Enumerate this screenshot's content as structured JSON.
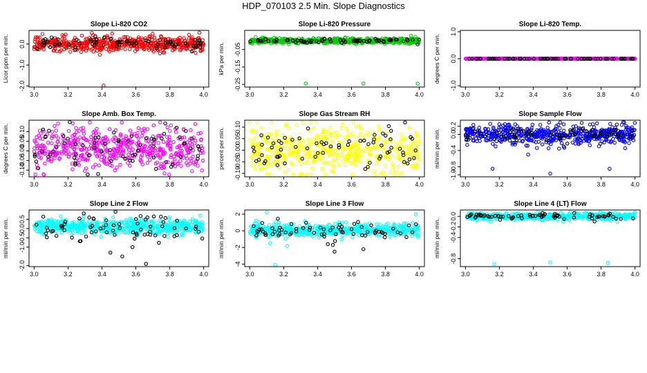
{
  "page": {
    "title": "HDP_070103  2.5 Min. Slope Diagnostics"
  },
  "chart_data": [
    {
      "type": "scatter",
      "title": "Slope Li-820 CO2",
      "xlabel": "",
      "ylabel": "Licor ppm per min.",
      "xlim": [
        2.97,
        4.03
      ],
      "ylim": [
        -2.05,
        0.65
      ],
      "xticks": [
        3.0,
        3.2,
        3.4,
        3.6,
        3.8,
        4.0
      ],
      "xtick_labels": [
        "3.0",
        "3.2",
        "3.4",
        "3.6",
        "3.8",
        "4.0"
      ],
      "yticks": [
        -2,
        -1,
        0
      ],
      "ytick_labels": [
        "-2.0",
        "-1.0",
        "0.0"
      ],
      "series": [
        {
          "color": "#ff0000",
          "center": 0.0,
          "spread": 0.17,
          "outliers": [
            [
              3.41,
              -1.98
            ],
            [
              3.46,
              0.5
            ]
          ]
        },
        {
          "color": "#000000",
          "center": 0.05,
          "spread": 0.15,
          "outliers": [
            [
              3.93,
              -0.35
            ],
            [
              3.98,
              -0.15
            ]
          ]
        }
      ]
    },
    {
      "type": "scatter",
      "title": "Slope Li-820 Pressure",
      "xlabel": "",
      "ylabel": "kPa per min.",
      "xlim": [
        2.97,
        4.03
      ],
      "ylim": [
        -0.265,
        0.06
      ],
      "xticks": [
        3.0,
        3.2,
        3.4,
        3.6,
        3.8,
        4.0
      ],
      "xtick_labels": [
        "3.0",
        "3.2",
        "3.4",
        "3.6",
        "3.8",
        "4.0"
      ],
      "yticks": [
        -0.25,
        -0.15,
        -0.05
      ],
      "ytick_labels": [
        "-0.25",
        "-0.15",
        "-0.05"
      ],
      "series": [
        {
          "color": "#00cc00",
          "center": 0.0,
          "spread": 0.008,
          "outliers": [
            [
              3.33,
              -0.245
            ],
            [
              3.67,
              -0.245
            ],
            [
              3.99,
              -0.245
            ],
            [
              3.95,
              0.03
            ]
          ]
        },
        {
          "color": "#000000",
          "center": 0.0,
          "spread": 0.006,
          "outliers": [
            [
              3.99,
              -0.02
            ]
          ]
        }
      ]
    },
    {
      "type": "scatter",
      "title": "Slope Li-820 Temp.",
      "xlabel": "",
      "ylabel": "degrees C per min.",
      "xlim": [
        2.97,
        4.03
      ],
      "ylim": [
        -1.05,
        1.05
      ],
      "xticks": [
        3.0,
        3.2,
        3.4,
        3.6,
        3.8,
        4.0
      ],
      "xtick_labels": [
        "3.0",
        "3.2",
        "3.4",
        "3.6",
        "3.8",
        "4.0"
      ],
      "yticks": [
        -1,
        0,
        1
      ],
      "ytick_labels": [
        "-1.0",
        "0.0",
        "1.0"
      ],
      "series": [
        {
          "color": "#ff00ff",
          "center": 0.0,
          "spread": 0.0,
          "outliers": []
        },
        {
          "color": "#000000",
          "center": 0.0,
          "spread": 0.0,
          "outliers": []
        }
      ]
    },
    {
      "type": "scatter",
      "title": "Slope Amb. Box Temp.",
      "xlabel": "",
      "ylabel": "degrees C per min.",
      "xlim": [
        2.97,
        4.03
      ],
      "ylim": [
        -0.135,
        0.16
      ],
      "xticks": [
        3.0,
        3.2,
        3.4,
        3.6,
        3.8,
        4.0
      ],
      "xtick_labels": [
        "3.0",
        "3.2",
        "3.4",
        "3.6",
        "3.8",
        "4.0"
      ],
      "yticks": [
        -0.1,
        -0.05,
        0.0,
        0.05,
        0.1
      ],
      "ytick_labels": [
        "-0.10",
        "-0.05",
        "0.00",
        "0.05",
        "0.10"
      ],
      "series": [
        {
          "color": "#ff00ff",
          "center": 0.01,
          "spread": 0.055,
          "outliers": [
            [
              3.95,
              0.14
            ]
          ]
        },
        {
          "color": "#000000",
          "center": 0.01,
          "spread": 0.06,
          "outliers": [
            [
              3.21,
              0.15
            ]
          ]
        }
      ]
    },
    {
      "type": "scatter",
      "title": "Slope Gas Stream RH",
      "xlabel": "",
      "ylabel": "percent per min.",
      "xlim": [
        2.97,
        4.03
      ],
      "ylim": [
        -0.115,
        0.13
      ],
      "xticks": [
        3.0,
        3.2,
        3.4,
        3.6,
        3.8,
        4.0
      ],
      "xtick_labels": [
        "3.0",
        "3.2",
        "3.4",
        "3.6",
        "3.8",
        "4.0"
      ],
      "yticks": [
        -0.1,
        -0.05,
        0.0,
        0.05,
        0.1
      ],
      "ytick_labels": [
        "-0.10",
        "-0.05",
        "0.00",
        "0.05",
        "0.10"
      ],
      "series": [
        {
          "color": "#ffff00",
          "center": 0.0,
          "spread": 0.05,
          "outliers": []
        },
        {
          "color": "#000000",
          "center": 0.0,
          "spread": 0.045,
          "outliers": []
        }
      ]
    },
    {
      "type": "scatter",
      "title": "Slope Sample Flow",
      "xlabel": "",
      "ylabel": "ml/min per min.",
      "xlim": [
        2.97,
        4.03
      ],
      "ylim": [
        -1.05,
        0.35
      ],
      "xticks": [
        3.0,
        3.2,
        3.4,
        3.6,
        3.8,
        4.0
      ],
      "xtick_labels": [
        "3.0",
        "3.2",
        "3.4",
        "3.6",
        "3.8",
        "4.0"
      ],
      "yticks": [
        -1.0,
        -0.8,
        -0.4,
        0.0,
        0.2
      ],
      "ytick_labels": [
        "-1.0",
        "-0.8",
        "-0.4",
        "0.0",
        "0.2"
      ],
      "series": [
        {
          "color": "#0000ff",
          "center": 0.0,
          "spread": 0.13,
          "outliers": [
            [
              3.16,
              -0.85
            ],
            [
              3.5,
              -0.97
            ],
            [
              3.85,
              -0.85
            ],
            [
              3.93,
              0.3
            ],
            [
              3.37,
              -0.5
            ]
          ]
        },
        {
          "color": "#000000",
          "center": 0.0,
          "spread": 0.1,
          "outliers": [
            [
              3.58,
              -0.3
            ]
          ]
        }
      ]
    },
    {
      "type": "scatter",
      "title": "Slope Line 2 Flow",
      "xlabel": "",
      "ylabel": "ml/min per min.",
      "xlim": [
        2.97,
        4.03
      ],
      "ylim": [
        -2.05,
        1.0
      ],
      "xticks": [
        3.0,
        3.2,
        3.4,
        3.6,
        3.8,
        4.0
      ],
      "xtick_labels": [
        "3.0",
        "3.2",
        "3.4",
        "3.6",
        "3.8",
        "4.0"
      ],
      "yticks": [
        -2.0,
        -1.0,
        -0.5,
        0.0,
        0.5
      ],
      "ytick_labels": [
        "-2.0",
        "-1.0",
        "-0.5",
        "0.0",
        "0.5"
      ],
      "series": [
        {
          "color": "#00ffff",
          "center": 0.1,
          "spread": 0.2,
          "outliers": [
            [
              3.98,
              0.7
            ]
          ]
        },
        {
          "color": "#000000",
          "center": 0.0,
          "spread": 0.35,
          "outliers": [
            [
              3.48,
              0.9
            ],
            [
              3.45,
              -1.3
            ],
            [
              3.52,
              -1.5
            ],
            [
              3.66,
              -1.9
            ],
            [
              3.58,
              -1.0
            ]
          ]
        }
      ]
    },
    {
      "type": "scatter",
      "title": "Slope Line 3 Flow",
      "xlabel": "",
      "ylabel": "ml/min per min.",
      "xlim": [
        2.97,
        4.03
      ],
      "ylim": [
        -4.3,
        2.5
      ],
      "xticks": [
        3.0,
        3.2,
        3.4,
        3.6,
        3.8,
        4.0
      ],
      "xtick_labels": [
        "3.0",
        "3.2",
        "3.4",
        "3.6",
        "3.8",
        "4.0"
      ],
      "yticks": [
        -4,
        -2,
        0,
        2
      ],
      "ytick_labels": [
        "-4",
        "-2",
        "0",
        "2"
      ],
      "series": [
        {
          "color": "#00ffff",
          "center": 0.1,
          "spread": 0.35,
          "outliers": [
            [
              3.15,
              -4.1
            ],
            [
              3.1,
              2.2
            ],
            [
              3.98,
              2.0
            ],
            [
              3.22,
              -1.8
            ],
            [
              3.12,
              -1.5
            ]
          ]
        },
        {
          "color": "#000000",
          "center": 0.0,
          "spread": 0.5,
          "outliers": [
            [
              3.5,
              -2.5
            ],
            [
              3.67,
              -2.2
            ],
            [
              3.46,
              -1.6
            ],
            [
              3.49,
              -1.7
            ]
          ]
        }
      ]
    },
    {
      "type": "scatter",
      "title": "Slope Line 4 (LT) Flow",
      "xlabel": "",
      "ylabel": "ml/min per min.",
      "xlim": [
        2.97,
        4.03
      ],
      "ylim": [
        -0.95,
        0.12
      ],
      "xticks": [
        3.0,
        3.2,
        3.4,
        3.6,
        3.8,
        4.0
      ],
      "xtick_labels": [
        "3.0",
        "3.2",
        "3.4",
        "3.6",
        "3.8",
        "4.0"
      ],
      "yticks": [
        -0.8,
        -0.4,
        -0.2,
        0.0
      ],
      "ytick_labels": [
        "-0.8",
        "-0.4",
        "-0.2",
        "0.0"
      ],
      "series": [
        {
          "color": "#00ffff",
          "center": 0.0,
          "spread": 0.03,
          "outliers": [
            [
              3.17,
              -0.9
            ],
            [
              3.5,
              -0.87
            ],
            [
              3.84,
              -0.88
            ],
            [
              3.15,
              -0.1
            ]
          ]
        },
        {
          "color": "#000000",
          "center": 0.0,
          "spread": 0.03,
          "outliers": []
        }
      ]
    }
  ]
}
